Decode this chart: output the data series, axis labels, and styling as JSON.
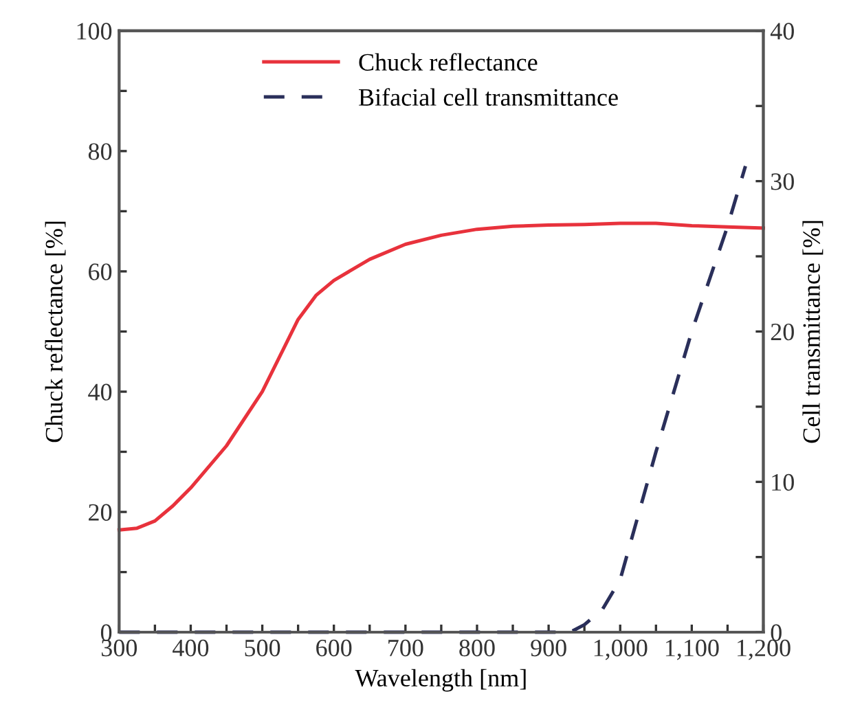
{
  "chart_data": {
    "type": "line",
    "xlabel": "Wavelength [nm]",
    "ylabel": "Chuck reflectance [%]",
    "y2label": "Cell transmittance [%]",
    "xlim": [
      300,
      1200
    ],
    "xticks": [
      {
        "value": 300,
        "label": "300"
      },
      {
        "value": 350,
        "label": null
      },
      {
        "value": 400,
        "label": "400"
      },
      {
        "value": 450,
        "label": null
      },
      {
        "value": 500,
        "label": "500"
      },
      {
        "value": 550,
        "label": null
      },
      {
        "value": 600,
        "label": "600"
      },
      {
        "value": 650,
        "label": null
      },
      {
        "value": 700,
        "label": "700"
      },
      {
        "value": 750,
        "label": null
      },
      {
        "value": 800,
        "label": "800"
      },
      {
        "value": 850,
        "label": null
      },
      {
        "value": 900,
        "label": "900"
      },
      {
        "value": 950,
        "label": null
      },
      {
        "value": 1000,
        "label": "1,000"
      },
      {
        "value": 1050,
        "label": null
      },
      {
        "value": 1100,
        "label": "1,100"
      },
      {
        "value": 1150,
        "label": null
      },
      {
        "value": 1200,
        "label": "1,200"
      }
    ],
    "ylim": [
      0,
      100
    ],
    "yticks": [
      0,
      {
        "value": 10,
        "label": null
      },
      20,
      {
        "value": 30,
        "label": null
      },
      40,
      {
        "value": 50,
        "label": null
      },
      60,
      {
        "value": 70,
        "label": null
      },
      80,
      {
        "value": 90,
        "label": null
      },
      100
    ],
    "y2lim": [
      0,
      40
    ],
    "y2ticks": [
      0,
      {
        "value": 5,
        "label": null
      },
      10,
      {
        "value": 15,
        "label": null
      },
      20,
      {
        "value": 25,
        "label": null
      },
      30,
      {
        "value": 35,
        "label": null
      },
      40
    ],
    "legend": "top",
    "grid": false,
    "series": [
      {
        "name": "Chuck reflectance",
        "color": "#e8323c",
        "line_style": "solid",
        "x": [
          300,
          325,
          350,
          375,
          400,
          450,
          500,
          525,
          550,
          575,
          600,
          650,
          700,
          750,
          800,
          850,
          900,
          950,
          1000,
          1050,
          1100,
          1150,
          1200
        ],
        "values": [
          17,
          17.3,
          18.5,
          21,
          24,
          31,
          40,
          46,
          52,
          56,
          58.5,
          62,
          64.5,
          66,
          67,
          67.5,
          67.7,
          67.8,
          68,
          68,
          67.6,
          67.4,
          67.2
        ]
      },
      {
        "name": "Bifacial cell transmittance",
        "color": "#2a2f5a",
        "line_style": "dashed",
        "axis": "y2",
        "x": [
          300,
          400,
          500,
          600,
          700,
          800,
          900,
          930,
          950,
          975,
          1000,
          1050,
          1100,
          1150,
          1175
        ],
        "values": [
          0,
          0,
          0,
          0,
          0,
          0,
          0,
          0,
          0.5,
          1.5,
          3.5,
          12,
          20,
          27,
          31
        ]
      }
    ]
  }
}
